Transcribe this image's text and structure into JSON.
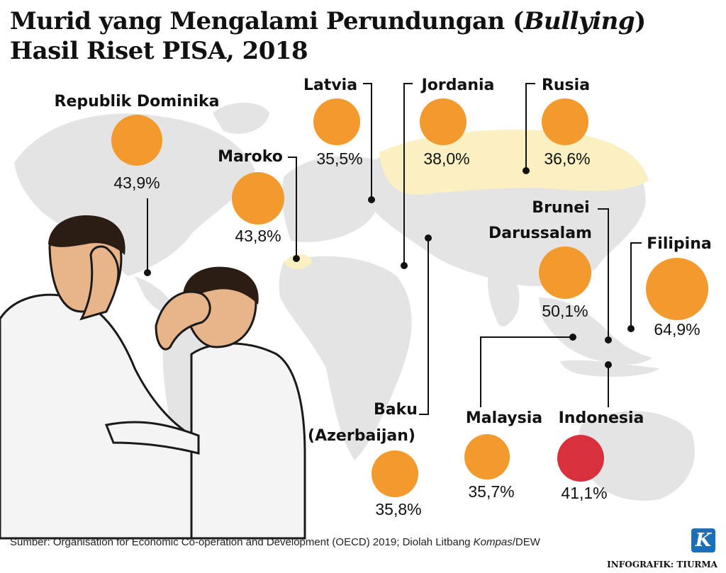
{
  "title": {
    "line1_prefix": "Murid yang Mengalami Perundungan (",
    "line1_italic": "Bullying",
    "line1_suffix": ")",
    "line2": "Hasil Riset PISA, 2018"
  },
  "source": {
    "prefix": "Sumber: Organisation for Economic Co-operation and Development (OECD) 2019; Diolah Litbang ",
    "italic": "Kompas",
    "suffix": "/DEW"
  },
  "credit": "INFOGRAFIK: TIURMA",
  "logo_letter": "K",
  "colors": {
    "bubble": "#f39a2e",
    "highlight": "#d9303d",
    "map": "#e4e4e4",
    "map_highlight": "#fbf0c2",
    "leader": "#111111"
  },
  "chart_data": {
    "type": "bubble-map",
    "unit": "%",
    "points": [
      {
        "country": "Republik Dominika",
        "value": 43.9,
        "label": "43,9%",
        "highlight": false
      },
      {
        "country": "Maroko",
        "value": 43.8,
        "label": "43,8%",
        "highlight": false
      },
      {
        "country": "Latvia",
        "value": 35.5,
        "label": "35,5%",
        "highlight": false
      },
      {
        "country": "Jordania",
        "value": 38.0,
        "label": "38,0%",
        "highlight": false
      },
      {
        "country": "Rusia",
        "value": 36.6,
        "label": "36,6%",
        "highlight": false
      },
      {
        "country": "Brunei Darussalam",
        "country_lines": [
          "Brunei",
          "Darussalam"
        ],
        "value": 50.1,
        "label": "50,1%",
        "highlight": false
      },
      {
        "country": "Filipina",
        "value": 64.9,
        "label": "64,9%",
        "highlight": false
      },
      {
        "country": "Baku (Azerbaijan)",
        "country_lines": [
          "Baku",
          "(Azerbaijan)"
        ],
        "value": 35.8,
        "label": "35,8%",
        "highlight": false
      },
      {
        "country": "Malaysia",
        "value": 35.7,
        "label": "35,7%",
        "highlight": false
      },
      {
        "country": "Indonesia",
        "value": 41.1,
        "label": "41,1%",
        "highlight": true
      }
    ]
  }
}
